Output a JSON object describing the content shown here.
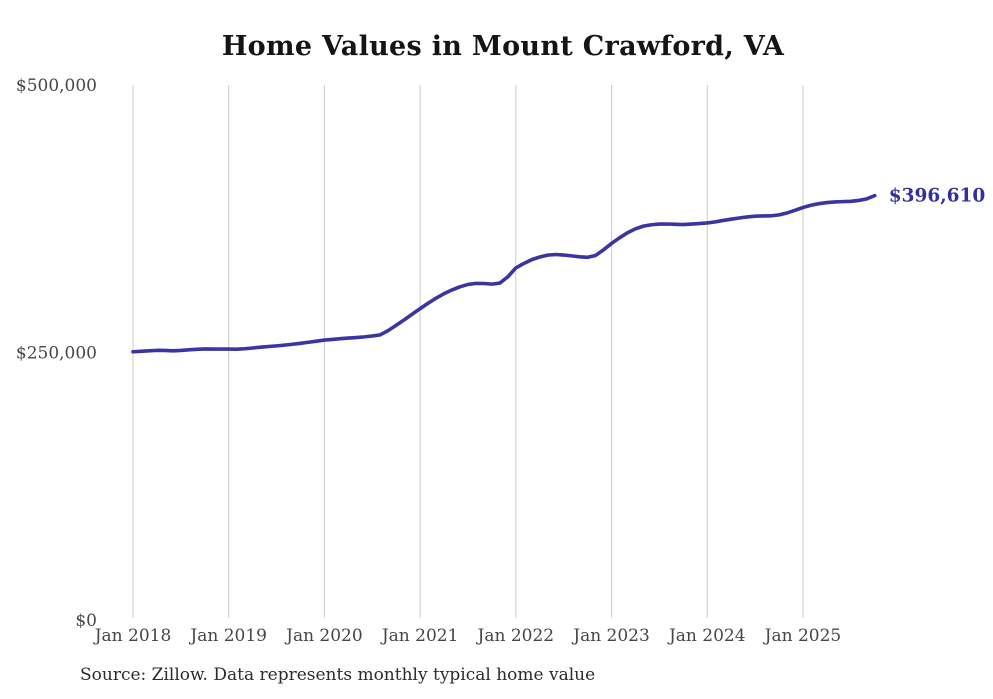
{
  "title": "Home Values in Mount Crawford, VA",
  "source_note": "Source: Zillow. Data represents monthly typical home value",
  "colors": {
    "line": "#3b35a2",
    "annotation_text": "#352f9e",
    "gridline": "#cccccc",
    "axis_text": "#464646",
    "title_text": "#151515",
    "source_text": "#2b2b2b",
    "background": "#ffffff"
  },
  "chart_data": {
    "type": "line",
    "title": "Home Values in Mount Crawford, VA",
    "xlabel": "",
    "ylabel": "",
    "ylim": [
      0,
      500000
    ],
    "grid": "vertical-only",
    "legend": "none",
    "x_tick_labels": [
      "Jan 2018",
      "Jan 2019",
      "Jan 2020",
      "Jan 2021",
      "Jan 2022",
      "Jan 2023",
      "Jan 2024",
      "Jan 2025"
    ],
    "y_ticks": [
      {
        "label": "$0",
        "value": 0
      },
      {
        "label": "$250,000",
        "value": 250000
      },
      {
        "label": "$500,000",
        "value": 500000
      }
    ],
    "end_label": "$396,610",
    "end_value": 396610,
    "series": [
      {
        "name": "Monthly typical home value",
        "x_start": "Jan 2018",
        "x_end": "Oct 2025",
        "interval": "monthly",
        "values": [
          250700,
          251100,
          251600,
          252000,
          251900,
          251600,
          251900,
          252500,
          253000,
          253300,
          253200,
          253200,
          253200,
          253100,
          253500,
          254200,
          255000,
          255600,
          256200,
          256900,
          257700,
          258600,
          259600,
          260600,
          261600,
          262200,
          262900,
          263500,
          264000,
          264600,
          265400,
          266500,
          270500,
          275500,
          280500,
          285800,
          291000,
          296000,
          300800,
          305000,
          308500,
          311400,
          313600,
          314600,
          314500,
          313900,
          314900,
          320800,
          329000,
          333200,
          336800,
          339300,
          341000,
          341600,
          341100,
          340300,
          339400,
          339000,
          340700,
          346000,
          351900,
          357200,
          361900,
          365600,
          368100,
          369400,
          370000,
          370100,
          369800,
          369600,
          370000,
          370500,
          371100,
          372100,
          373400,
          374600,
          375700,
          376700,
          377400,
          377600,
          377700,
          378600,
          380400,
          382900,
          385500,
          387600,
          389100,
          390100,
          390700,
          391000,
          391300,
          392100,
          393600,
          396610
        ]
      }
    ]
  }
}
